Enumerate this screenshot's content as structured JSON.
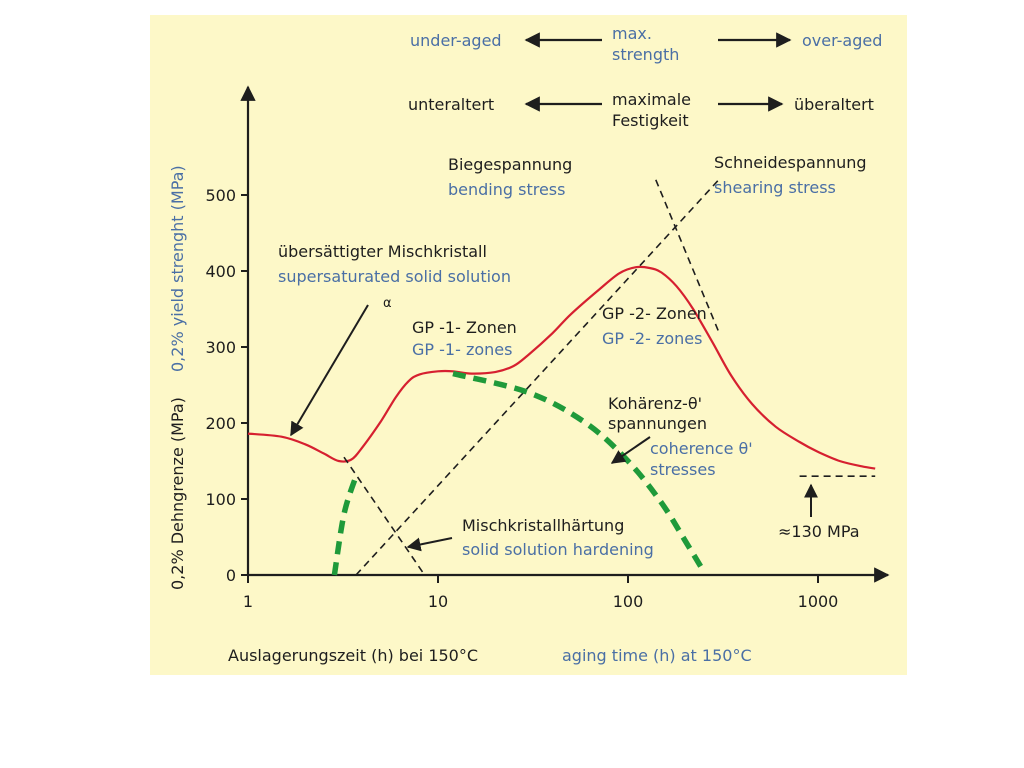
{
  "chart_data": {
    "type": "line",
    "x_scale": "log",
    "xlim": [
      1,
      2000
    ],
    "ylim": [
      0,
      600
    ],
    "x_ticks": [
      1,
      10,
      100,
      1000
    ],
    "x_tick_labels": [
      "1",
      "10",
      "100",
      "1000"
    ],
    "y_ticks": [
      0,
      100,
      200,
      300,
      400,
      500
    ],
    "y_tick_labels": [
      "0",
      "100",
      "200",
      "300",
      "400",
      "500"
    ],
    "ylabel_de": "0,2% Dehngrenze (MPa)",
    "ylabel_en": "0,2% yield strenght (MPa)",
    "xlabel_de": "Auslagerungszeit (h) bei 150°C",
    "xlabel_en": "aging time (h) at 150°C",
    "colors": {
      "strength_curve": "#d62030",
      "coherence_curve": "#1f9a3a",
      "dashed": "#1e1e1e",
      "blue_text": "#4a6fa5",
      "background": "#fdf8c8"
    },
    "series": [
      {
        "style": "solid-red",
        "x": [
          1,
          1.5,
          2,
          2.5,
          3,
          3.5,
          4,
          5,
          6,
          7,
          8,
          10,
          12,
          15,
          20,
          25,
          30,
          40,
          50,
          70,
          90,
          110,
          130,
          150,
          180,
          220,
          280,
          350,
          450,
          600,
          800,
          1000,
          1300,
          1700,
          2000
        ],
        "y": [
          186,
          182,
          172,
          160,
          150,
          152,
          168,
          202,
          234,
          255,
          264,
          268,
          268,
          265,
          267,
          275,
          290,
          318,
          343,
          375,
          397,
          405,
          404,
          398,
          380,
          350,
          305,
          262,
          225,
          195,
          175,
          162,
          150,
          143,
          140
        ]
      },
      {
        "style": "dashed-black",
        "x": [
          3.7,
          300
        ],
        "y": [
          0,
          520
        ]
      },
      {
        "style": "dashed-black",
        "x": [
          140,
          300
        ],
        "y": [
          520,
          320
        ]
      },
      {
        "style": "dashed-black",
        "x": [
          3.2,
          8.5
        ],
        "y": [
          155,
          0
        ]
      },
      {
        "style": "dashed-green-thick",
        "x": [
          2.85,
          3.2,
          3.7
        ],
        "y": [
          0,
          80,
          130
        ]
      },
      {
        "style": "dashed-green-thick",
        "x": [
          12,
          30,
          60,
          100,
          150,
          200,
          250
        ],
        "y": [
          265,
          240,
          200,
          150,
          95,
          45,
          5
        ]
      },
      {
        "style": "dashed-black",
        "x": [
          800,
          2000
        ],
        "y": [
          130,
          130
        ]
      }
    ],
    "annotations": {
      "top_row1": {
        "left": "under-aged",
        "mid1": "max.",
        "mid2": "strength",
        "right": "over-aged"
      },
      "top_row2": {
        "left": "unteraltert",
        "mid1": "maximale",
        "mid2": "Festigkeit",
        "right": "überaltert"
      },
      "bending": {
        "de": "Biegespannung",
        "en": "bending stress"
      },
      "shearing": {
        "de": "Schneidespannung",
        "en": "shearing stress"
      },
      "solution": {
        "de": "übersättigter Mischkristall",
        "en": "supersaturated solid solution",
        "symbol": "α"
      },
      "gp1": {
        "de": "GP -1- Zonen",
        "en": "GP -1- zones"
      },
      "gp2": {
        "de": "GP -2- Zonen",
        "en": "GP -2- zones"
      },
      "coherence": {
        "de1": "Kohärenz-θ'",
        "de2": "spannungen",
        "en1": "coherence θ'",
        "en2": "stresses"
      },
      "hardening": {
        "de": "Mischkristallhärtung",
        "en": "solid solution hardening"
      },
      "mpa130": "≈130 MPa"
    }
  }
}
